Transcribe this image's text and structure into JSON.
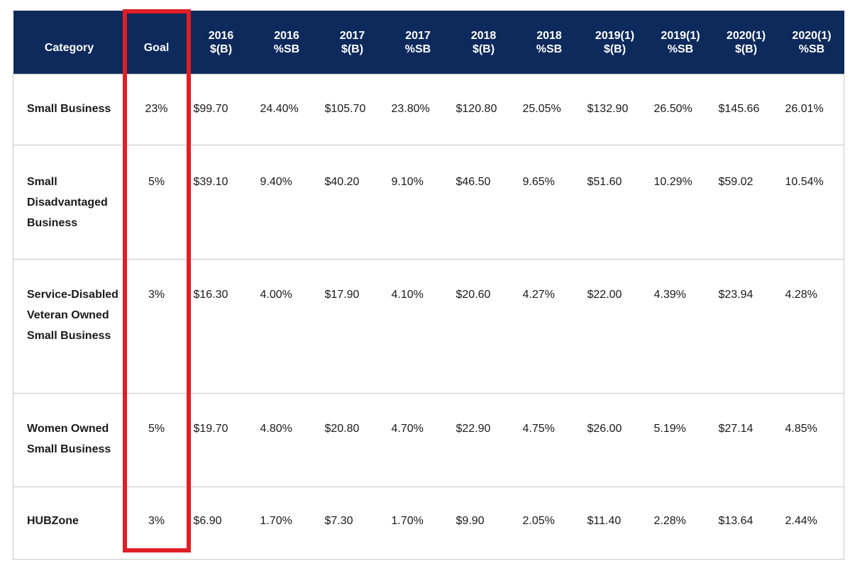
{
  "table": {
    "headers": [
      "Category",
      "Goal",
      "2016\n$(B)",
      "2016\n%SB",
      "2017\n$(B)",
      "2017\n%SB",
      "2018\n$(B)",
      "2018\n%SB",
      "2019(1)\n$(B)",
      "2019(1)\n%SB",
      "2020(1)\n$(B)",
      "2020(1)\n%SB"
    ],
    "rows": [
      [
        "Small Business",
        "23%",
        "$99.70",
        "24.40%",
        "$105.70",
        "23.80%",
        "$120.80",
        "25.05%",
        "$132.90",
        "26.50%",
        "$145.66",
        "26.01%"
      ],
      [
        "Small Disadvantaged Business",
        "5%",
        "$39.10",
        "9.40%",
        "$40.20",
        "9.10%",
        "$46.50",
        "9.65%",
        "$51.60",
        "10.29%",
        "$59.02",
        "10.54%"
      ],
      [
        "Service-Disabled Veteran Owned Small Business",
        "3%",
        "$16.30",
        "4.00%",
        "$17.90",
        "4.10%",
        "$20.60",
        "4.27%",
        "$22.00",
        "4.39%",
        "$23.94",
        "4.28%"
      ],
      [
        "Women Owned Small Business",
        "5%",
        "$19.70",
        "4.80%",
        "$20.80",
        "4.70%",
        "$22.90",
        "4.75%",
        "$26.00",
        "5.19%",
        "$27.14",
        "4.85%"
      ],
      [
        "HUBZone",
        "3%",
        "$6.90",
        "1.70%",
        "$7.30",
        "1.70%",
        "$9.90",
        "2.05%",
        "$11.40",
        "2.28%",
        "$13.64",
        "2.44%"
      ]
    ]
  },
  "colors": {
    "header_bg": "#0e2a5c",
    "highlight": "#e01e26"
  }
}
